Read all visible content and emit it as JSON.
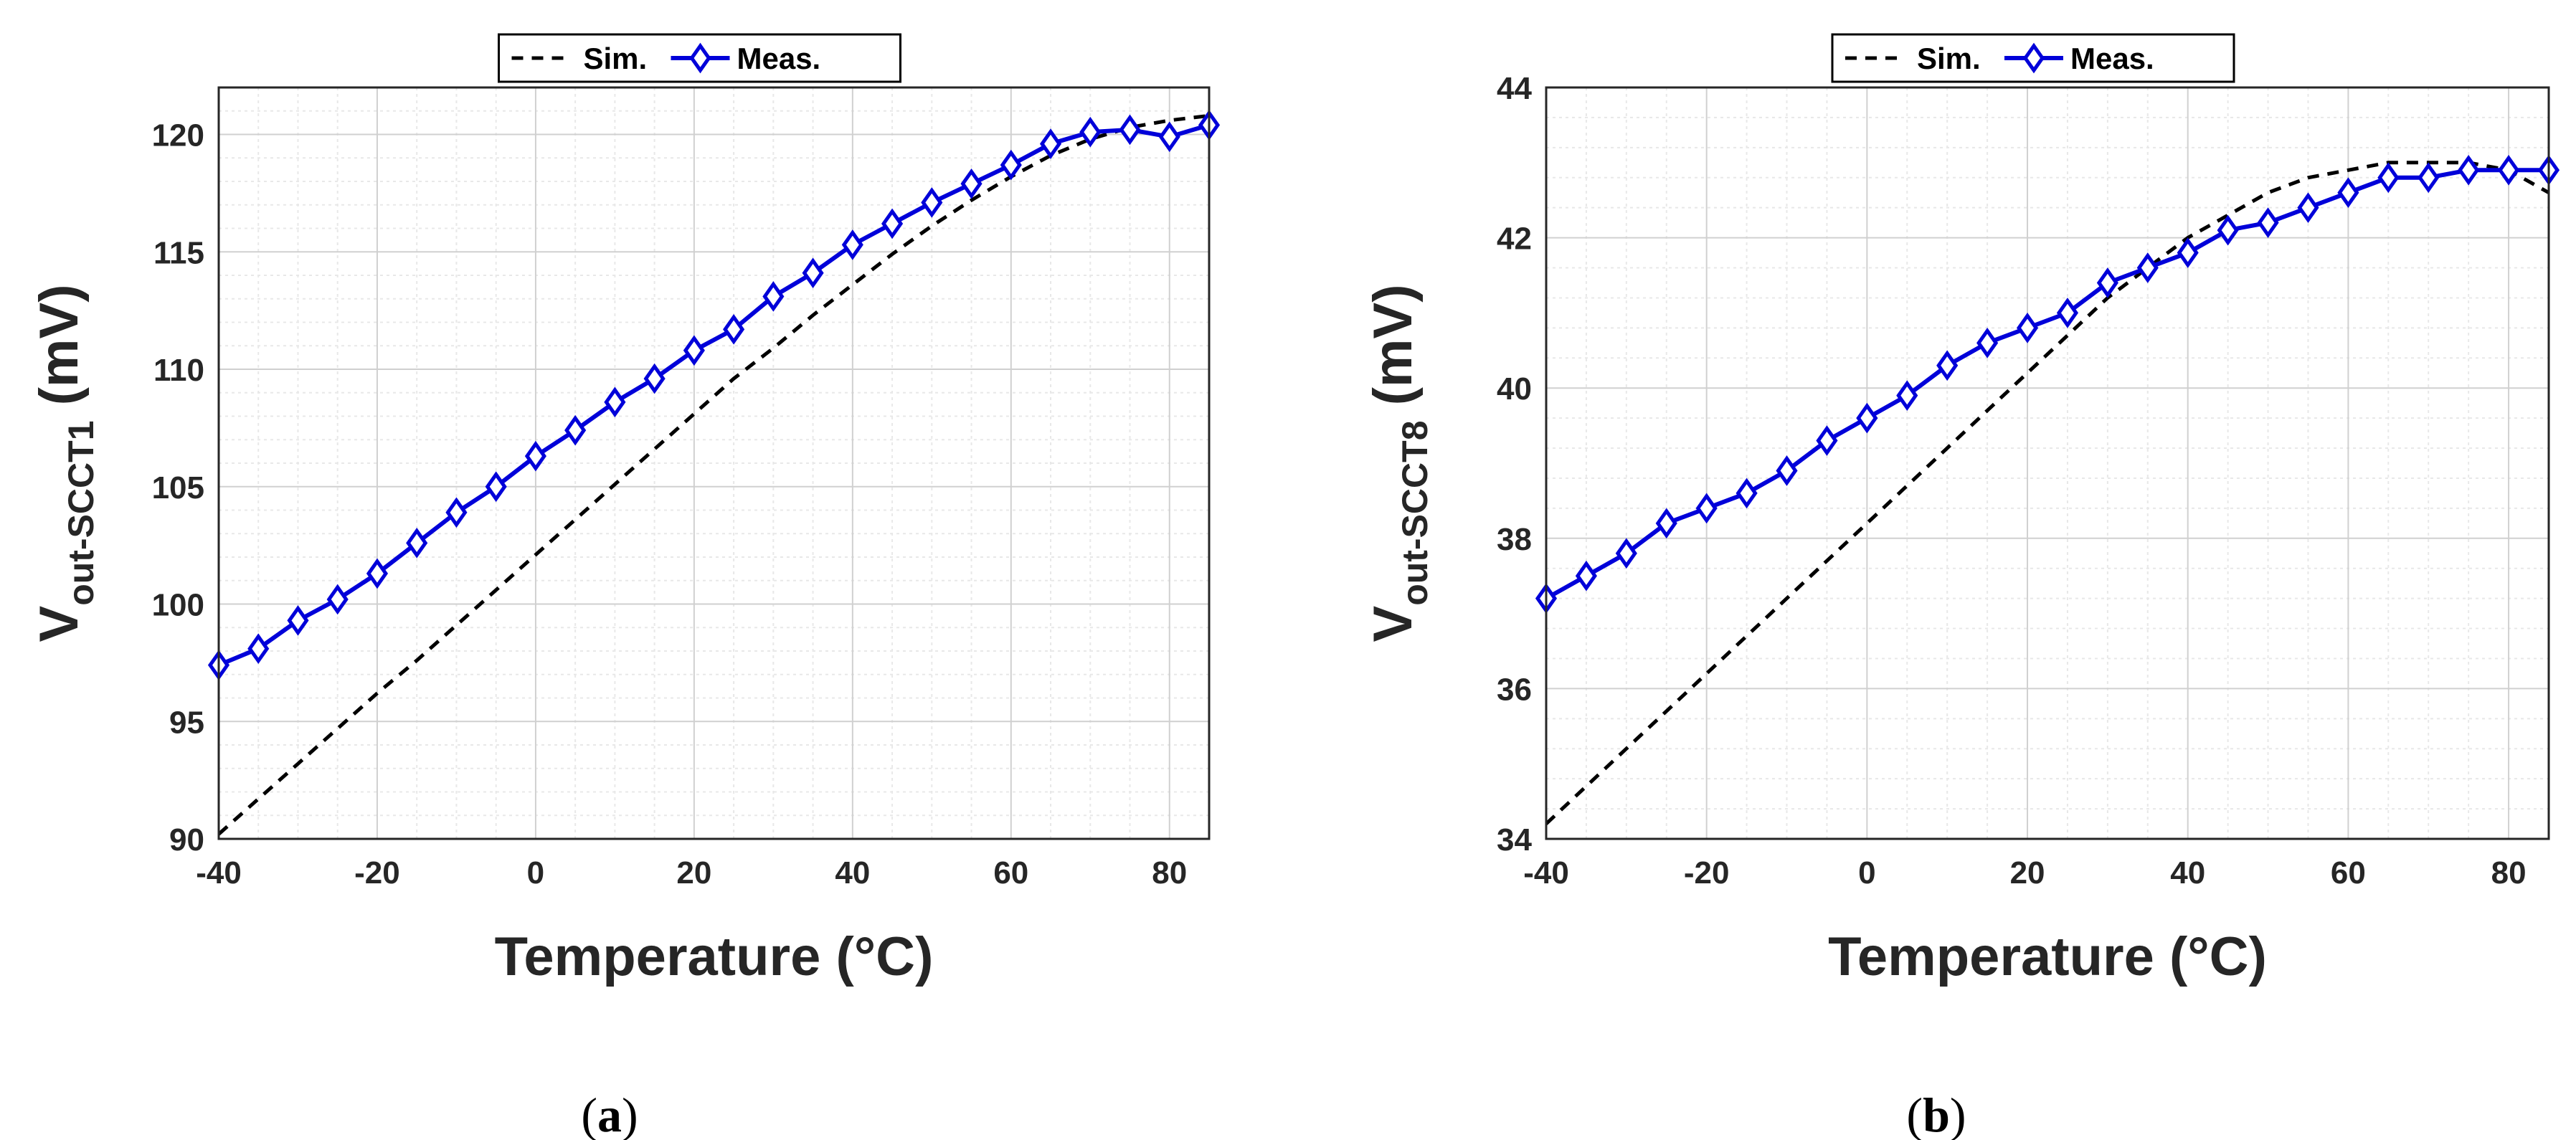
{
  "colors": {
    "sim": "#000000",
    "meas": "#0000d9",
    "grid_major": "#d0d0d0",
    "grid_minor": "#e8e8e8"
  },
  "chart_data": [
    {
      "type": "line",
      "panel_label": "a",
      "xlabel": "Temperature (°C)",
      "ylabel_main": "V",
      "ylabel_sub": "out-SCCT1",
      "ylabel_unit": "(mV)",
      "xlim": [
        -40,
        85
      ],
      "ylim": [
        90,
        122
      ],
      "xticks": [
        -40,
        -20,
        0,
        20,
        40,
        60,
        80
      ],
      "yticks": [
        90,
        95,
        100,
        105,
        110,
        115,
        120
      ],
      "legend": {
        "placement": "top-center",
        "entries": [
          "Sim.",
          "Meas."
        ]
      },
      "series": [
        {
          "name": "Sim.",
          "style": "dashed",
          "x": [
            -40,
            -35,
            -30,
            -25,
            -20,
            -15,
            -10,
            -5,
            0,
            5,
            10,
            15,
            20,
            25,
            30,
            35,
            40,
            45,
            50,
            55,
            60,
            65,
            70,
            75,
            80,
            85
          ],
          "y": [
            90.2,
            91.7,
            93.2,
            94.7,
            96.2,
            97.6,
            99.1,
            100.6,
            102.1,
            103.6,
            105.1,
            106.6,
            108.1,
            109.6,
            110.9,
            112.3,
            113.6,
            114.9,
            116.1,
            117.2,
            118.2,
            119.1,
            119.8,
            120.3,
            120.6,
            120.8
          ]
        },
        {
          "name": "Meas.",
          "style": "solid-diamond",
          "x": [
            -40,
            -35,
            -30,
            -25,
            -20,
            -15,
            -10,
            -5,
            0,
            5,
            10,
            15,
            20,
            25,
            30,
            35,
            40,
            45,
            50,
            55,
            60,
            65,
            70,
            75,
            80,
            85
          ],
          "y": [
            97.4,
            98.1,
            99.3,
            100.2,
            101.3,
            102.6,
            103.9,
            105.0,
            106.3,
            107.4,
            108.6,
            109.6,
            110.8,
            111.7,
            113.1,
            114.1,
            115.3,
            116.2,
            117.1,
            117.9,
            118.7,
            119.6,
            120.1,
            120.2,
            119.9,
            120.4
          ]
        }
      ]
    },
    {
      "type": "line",
      "panel_label": "b",
      "xlabel": "Temperature (°C)",
      "ylabel_main": "V",
      "ylabel_sub": "out-SCCT8",
      "ylabel_unit": "(mV)",
      "xlim": [
        -40,
        85
      ],
      "ylim": [
        34,
        44
      ],
      "xticks": [
        -40,
        -20,
        0,
        20,
        40,
        60,
        80
      ],
      "yticks": [
        34,
        36,
        38,
        40,
        42,
        44
      ],
      "legend": {
        "placement": "top-center",
        "entries": [
          "Sim.",
          "Meas."
        ]
      },
      "series": [
        {
          "name": "Sim.",
          "style": "dashed",
          "x": [
            -40,
            -35,
            -30,
            -25,
            -20,
            -15,
            -10,
            -5,
            0,
            5,
            10,
            15,
            20,
            25,
            30,
            35,
            40,
            45,
            50,
            55,
            60,
            65,
            70,
            75,
            80,
            85
          ],
          "y": [
            34.2,
            34.7,
            35.2,
            35.7,
            36.2,
            36.7,
            37.2,
            37.7,
            38.2,
            38.7,
            39.2,
            39.7,
            40.2,
            40.7,
            41.2,
            41.6,
            42.0,
            42.3,
            42.6,
            42.8,
            42.9,
            43.0,
            43.0,
            43.0,
            42.9,
            42.6
          ]
        },
        {
          "name": "Meas.",
          "style": "solid-diamond",
          "x": [
            -40,
            -35,
            -30,
            -25,
            -20,
            -15,
            -10,
            -5,
            0,
            5,
            10,
            15,
            20,
            25,
            30,
            35,
            40,
            45,
            50,
            55,
            60,
            65,
            70,
            75,
            80,
            85
          ],
          "y": [
            37.2,
            37.5,
            37.8,
            38.2,
            38.4,
            38.6,
            38.9,
            39.3,
            39.6,
            39.9,
            40.3,
            40.6,
            40.8,
            41.0,
            41.4,
            41.6,
            41.8,
            42.1,
            42.2,
            42.4,
            42.6,
            42.8,
            42.8,
            42.9,
            42.9,
            42.9
          ]
        }
      ]
    }
  ]
}
